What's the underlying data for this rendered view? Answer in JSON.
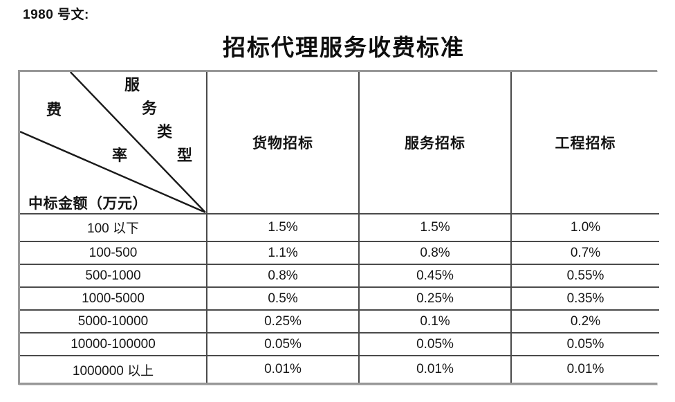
{
  "doc_ref": "1980 号文:",
  "title": "招标代理服务收费标准",
  "table": {
    "diagonal": {
      "service_type_chars": [
        "服",
        "务",
        "类",
        "型"
      ],
      "fee_rate_chars": [
        "费",
        "率"
      ],
      "bottom_label": "中标金额（万元）"
    },
    "columns": [
      "货物招标",
      "服务招标",
      "工程招标"
    ],
    "rows": [
      {
        "label": "100 以下",
        "values": [
          "1.5%",
          "1.5%",
          "1.0%"
        ]
      },
      {
        "label": "100-500",
        "values": [
          "1.1%",
          "0.8%",
          "0.7%"
        ]
      },
      {
        "label": "500-1000",
        "values": [
          "0.8%",
          "0.45%",
          "0.55%"
        ]
      },
      {
        "label": "1000-5000",
        "values": [
          "0.5%",
          "0.25%",
          "0.35%"
        ]
      },
      {
        "label": "5000-10000",
        "values": [
          "0.25%",
          "0.1%",
          "0.2%"
        ]
      },
      {
        "label": "10000-100000",
        "values": [
          "0.05%",
          "0.05%",
          "0.05%"
        ]
      },
      {
        "label": "1000000 以上",
        "values": [
          "0.01%",
          "0.01%",
          "0.01%"
        ]
      }
    ]
  },
  "colors": {
    "text": "#111111",
    "inner_border": "#4a4a4a",
    "outer_border": "#979797",
    "diagonal_line": "#1a1a1a"
  }
}
